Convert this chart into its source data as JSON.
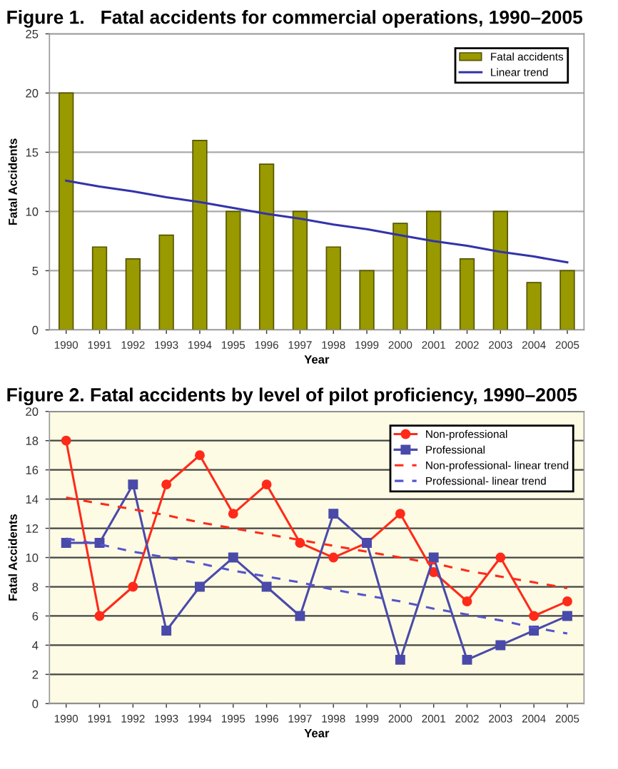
{
  "chart_data": [
    {
      "type": "bar",
      "title": "Figure 1.   Fatal accidents for commercial operations, 1990–2005",
      "xlabel": "Year",
      "ylabel": "Fatal Accidents",
      "categories": [
        "1990",
        "1991",
        "1992",
        "1993",
        "1994",
        "1995",
        "1996",
        "1997",
        "1998",
        "1999",
        "2000",
        "2001",
        "2002",
        "2003",
        "2004",
        "2005"
      ],
      "series": [
        {
          "name": "Fatal accidents",
          "type": "bar",
          "color": "#999900",
          "values": [
            20,
            7,
            6,
            8,
            16,
            10,
            14,
            10,
            7,
            5,
            9,
            10,
            6,
            10,
            4,
            5
          ]
        },
        {
          "name": "Linear trend",
          "type": "line",
          "color": "#3333aa",
          "values": [
            12.6,
            12.1,
            11.7,
            11.2,
            10.8,
            10.3,
            9.8,
            9.4,
            8.9,
            8.5,
            8.0,
            7.5,
            7.1,
            6.6,
            6.2,
            5.7
          ]
        }
      ],
      "ylim": [
        0,
        25
      ],
      "yticks": [
        0,
        5,
        10,
        15,
        20,
        25
      ],
      "grid": "y",
      "legend": "top right"
    },
    {
      "type": "line",
      "title": "Figure 2. Fatal accidents by level of pilot proficiency, 1990–2005",
      "xlabel": "Year",
      "ylabel": "Fatal Accidents",
      "categories": [
        "1990",
        "1991",
        "1992",
        "1993",
        "1994",
        "1995",
        "1996",
        "1997",
        "1998",
        "1999",
        "2000",
        "2001",
        "2002",
        "2003",
        "2004",
        "2005"
      ],
      "series": [
        {
          "name": "Non-professional",
          "color": "#ff2a1a",
          "marker": "circle",
          "line_style": "solid",
          "values": [
            18,
            6,
            8,
            15,
            17,
            13,
            15,
            11,
            10,
            11,
            13,
            9,
            7,
            10,
            6,
            7
          ]
        },
        {
          "name": "Professional",
          "color": "#4a4aaa",
          "marker": "square",
          "line_style": "solid",
          "values": [
            11,
            11,
            15,
            5,
            8,
            10,
            8,
            6,
            13,
            11,
            3,
            10,
            3,
            4,
            5,
            6
          ]
        },
        {
          "name": "Non-professional- linear trend",
          "color": "#ff2a1a",
          "marker": "none",
          "line_style": "dashed",
          "values": [
            14.1,
            13.7,
            13.3,
            12.9,
            12.4,
            12.0,
            11.6,
            11.2,
            10.8,
            10.4,
            10.0,
            9.6,
            9.1,
            8.7,
            8.3,
            7.9
          ]
        },
        {
          "name": "Professional- linear trend",
          "color": "#5555cc",
          "marker": "none",
          "line_style": "dashed",
          "values": [
            11.3,
            10.9,
            10.4,
            10.0,
            9.6,
            9.1,
            8.7,
            8.3,
            7.8,
            7.4,
            7.0,
            6.5,
            6.1,
            5.7,
            5.2,
            4.8
          ]
        }
      ],
      "ylim": [
        0,
        20
      ],
      "yticks": [
        0,
        2,
        4,
        6,
        8,
        10,
        12,
        14,
        16,
        18,
        20
      ],
      "grid": "y",
      "legend": "top right"
    }
  ]
}
